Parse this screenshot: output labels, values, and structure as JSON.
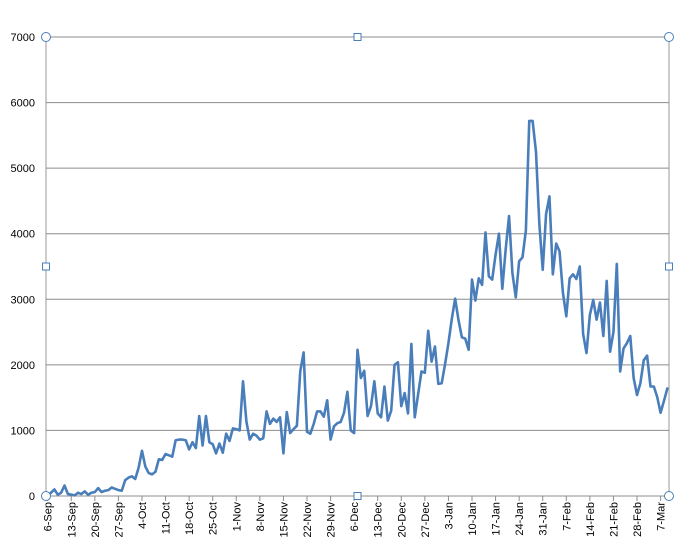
{
  "chart_data": {
    "type": "line",
    "title": "",
    "xlabel": "",
    "ylabel": "",
    "ylim": [
      0,
      7000
    ],
    "y_ticks": [
      "0",
      "1000",
      "2000",
      "3000",
      "4000",
      "5000",
      "6000",
      "7000"
    ],
    "x_tick_labels": [
      "6-Sep",
      "13-Sep",
      "20-Sep",
      "27-Sep",
      "4-Oct",
      "11-Oct",
      "18-Oct",
      "25-Oct",
      "1-Nov",
      "8-Nov",
      "15-Nov",
      "22-Nov",
      "29-Nov",
      "6-Dec",
      "13-Dec",
      "20-Dec",
      "27-Dec",
      "3-Jan",
      "10-Jan",
      "17-Jan",
      "24-Jan",
      "31-Jan",
      "7-Feb",
      "14-Feb",
      "21-Feb",
      "28-Feb",
      "7-Mar"
    ],
    "grid": "horizontal",
    "legend": "none",
    "series": [
      {
        "color": "#4a7ebb",
        "values": [
          0,
          50,
          100,
          20,
          50,
          160,
          30,
          20,
          10,
          50,
          30,
          70,
          20,
          50,
          60,
          120,
          60,
          80,
          90,
          130,
          110,
          90,
          80,
          240,
          280,
          300,
          260,
          430,
          690,
          450,
          350,
          330,
          370,
          560,
          550,
          640,
          620,
          600,
          850,
          860,
          860,
          850,
          710,
          820,
          730,
          1220,
          770,
          1220,
          820,
          790,
          650,
          800,
          660,
          950,
          840,
          1030,
          1020,
          1000,
          1750,
          1140,
          860,
          950,
          920,
          860,
          880,
          1290,
          1100,
          1180,
          1130,
          1200,
          650,
          1280,
          960,
          1020,
          1070,
          1900,
          2190,
          980,
          950,
          1100,
          1290,
          1290,
          1210,
          1460,
          860,
          1060,
          1110,
          1130,
          1270,
          1590,
          1000,
          960,
          2230,
          1800,
          1910,
          1220,
          1370,
          1750,
          1260,
          1200,
          1670,
          1150,
          1300,
          2000,
          2040,
          1370,
          1570,
          1260,
          2320,
          1200,
          1550,
          1900,
          1880,
          2520,
          2050,
          2280,
          1710,
          1720,
          2010,
          2330,
          2700,
          3010,
          2680,
          2420,
          2400,
          2230,
          3300,
          2980,
          3320,
          3220,
          4020,
          3350,
          3300,
          3680,
          4000,
          3160,
          3760,
          4270,
          3400,
          3030,
          3580,
          3640,
          4050,
          5720,
          5720,
          5250,
          4150,
          3450,
          4300,
          4570,
          3380,
          3850,
          3730,
          3100,
          2740,
          3320,
          3380,
          3310,
          3500,
          2470,
          2180,
          2760,
          2990,
          2690,
          2950,
          2440,
          3280,
          2200,
          2500,
          3540,
          1900,
          2250,
          2330,
          2440,
          1800,
          1540,
          1720,
          2070,
          2140,
          1670,
          1670,
          1510,
          1270,
          1450,
          1640
        ]
      }
    ]
  }
}
